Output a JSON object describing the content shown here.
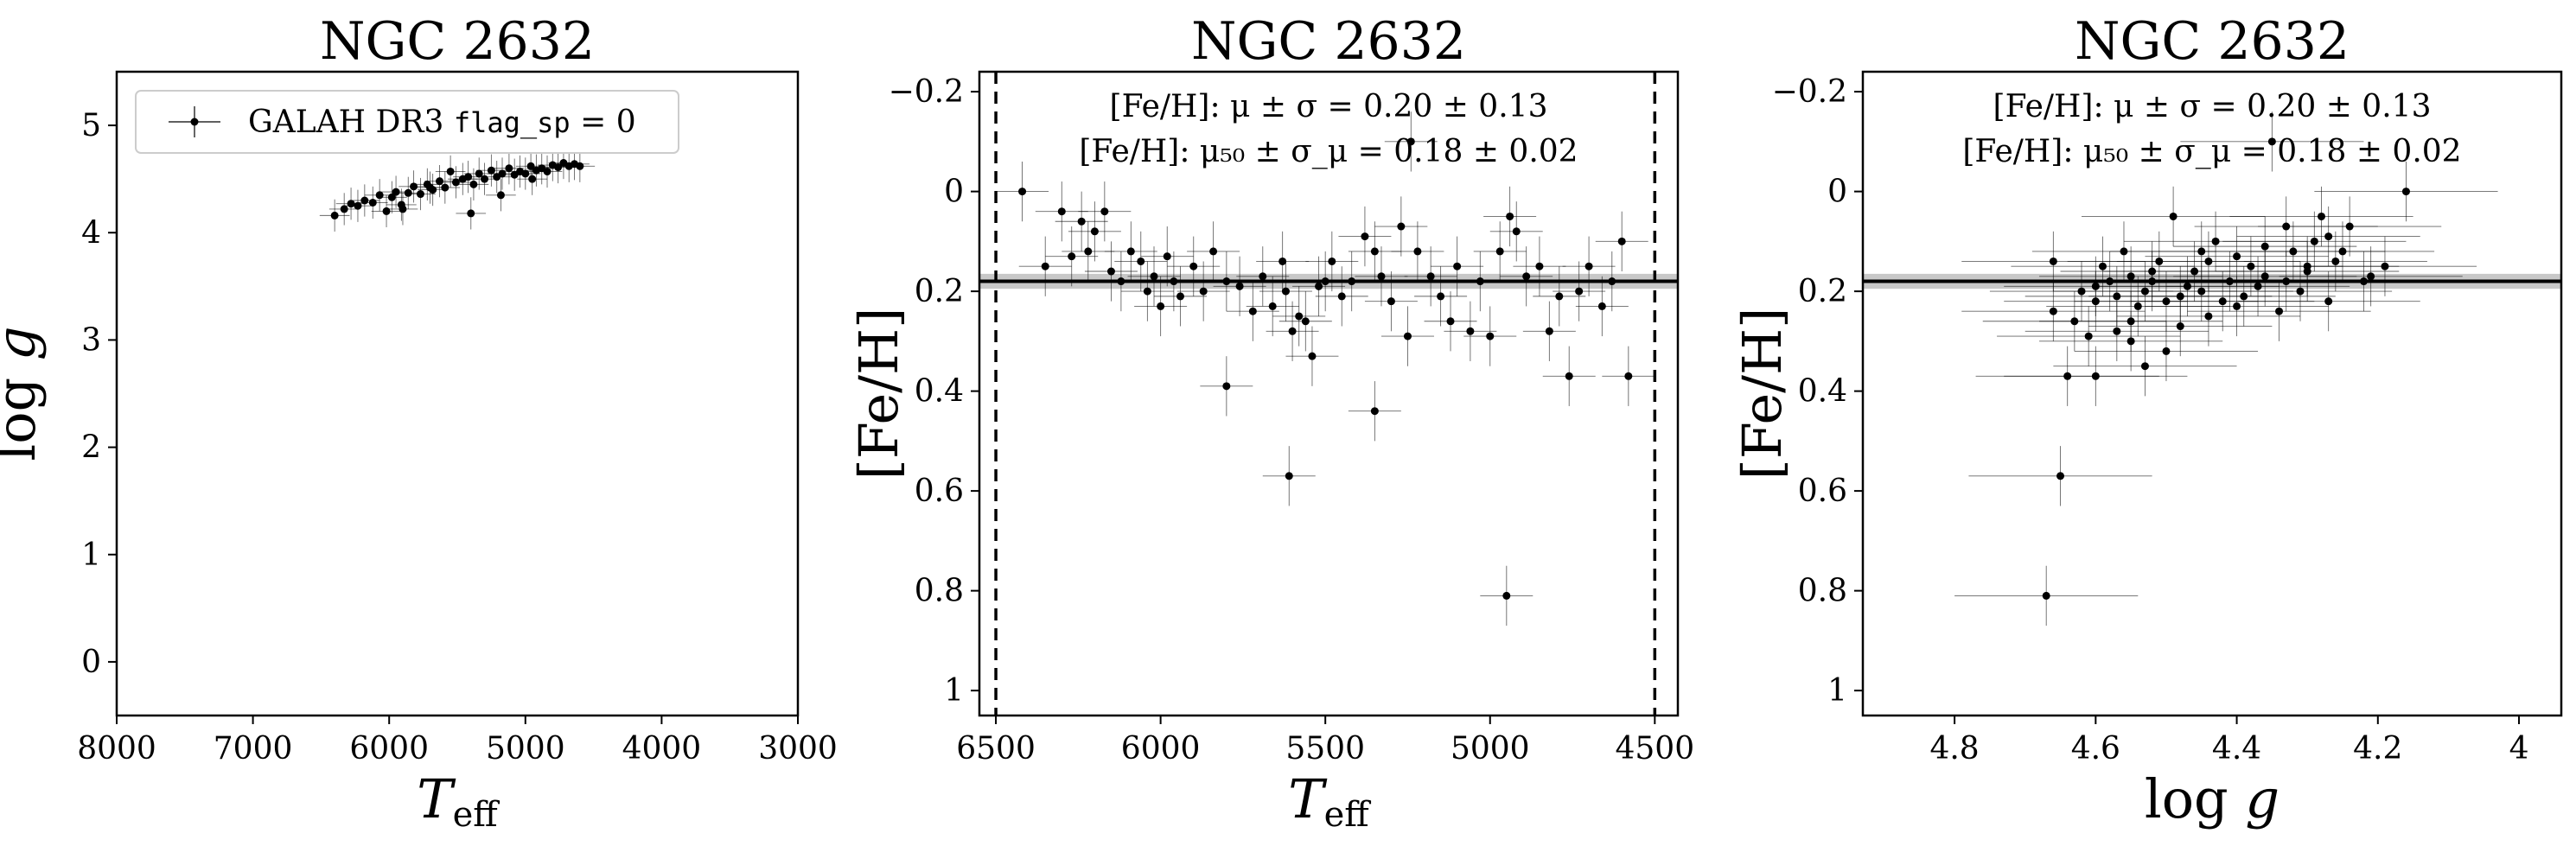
{
  "chart_data": [
    {
      "type": "scatter",
      "title": "NGC 2632",
      "xlabel": "T_eff",
      "xlabel_main": "T",
      "xlabel_sub": "eff",
      "ylabel": "log g",
      "ylabel_main": "log",
      "ylabel_var": "g",
      "xlim": [
        8000,
        3000
      ],
      "ylim": [
        5.5,
        -0.5
      ],
      "xticks": [
        8000,
        7000,
        6000,
        5000,
        4000,
        3000
      ],
      "yticks": [
        0,
        1,
        2,
        3,
        4,
        5
      ],
      "legend": {
        "label_prefix": "GALAH DR3",
        "label_code": "flag_sp",
        "label_suffix": "= 0",
        "placement": "upper-left"
      },
      "series": [
        {
          "name": "GALAH DR3 flag_sp = 0",
          "x": [
            6400,
            6330,
            6280,
            6230,
            6180,
            6120,
            6070,
            6020,
            5980,
            5950,
            5910,
            5860,
            5820,
            5770,
            5720,
            5680,
            5630,
            5590,
            5550,
            5510,
            5460,
            5420,
            5380,
            5340,
            5300,
            5250,
            5210,
            5170,
            5120,
            5080,
            5040,
            5000,
            4960,
            4920,
            4880,
            4840,
            4800,
            4760,
            4720,
            4680,
            4640,
            4600,
            5400,
            5900,
            5700,
            5180,
            4950
          ],
          "y": [
            4.16,
            4.22,
            4.27,
            4.25,
            4.3,
            4.28,
            4.35,
            4.2,
            4.33,
            4.38,
            4.26,
            4.37,
            4.43,
            4.36,
            4.45,
            4.4,
            4.48,
            4.42,
            4.57,
            4.47,
            4.5,
            4.52,
            4.45,
            4.55,
            4.5,
            4.58,
            4.52,
            4.55,
            4.6,
            4.54,
            4.57,
            4.55,
            4.62,
            4.58,
            4.6,
            4.57,
            4.63,
            4.61,
            4.65,
            4.62,
            4.64,
            4.62,
            4.18,
            4.22,
            4.42,
            4.35,
            4.5
          ],
          "xerr": 110,
          "yerr": 0.15
        }
      ]
    },
    {
      "type": "scatter",
      "title": "NGC 2632",
      "xlabel": "T_eff",
      "xlabel_main": "T",
      "xlabel_sub": "eff",
      "ylabel": "[Fe/H]",
      "xlim": [
        6550,
        4430
      ],
      "ylim": [
        -0.24,
        1.05
      ],
      "xticks": [
        6500,
        6000,
        5500,
        5000,
        4500
      ],
      "yticks": [
        -0.2,
        0.0,
        0.2,
        0.4,
        0.6,
        0.8,
        1.0
      ],
      "vlines": [
        6500,
        4500
      ],
      "hline": 0.18,
      "hband": [
        0.165,
        0.195
      ],
      "annotations": [
        "[Fe/H]: μ ± σ = 0.20 ± 0.13",
        "[Fe/H]: μ₅₀ ± σ_μ = 0.18 ± 0.02"
      ],
      "series": [
        {
          "name": "",
          "x": [
            6420,
            6350,
            6300,
            6270,
            6240,
            6220,
            6200,
            6170,
            6150,
            6120,
            6090,
            6060,
            6040,
            6020,
            6000,
            5980,
            5960,
            5940,
            5900,
            5870,
            5840,
            5800,
            5760,
            5720,
            5690,
            5660,
            5630,
            5620,
            5600,
            5580,
            5560,
            5540,
            5520,
            5500,
            5480,
            5450,
            5420,
            5380,
            5350,
            5330,
            5300,
            5270,
            5250,
            5220,
            5180,
            5150,
            5120,
            5100,
            5060,
            5030,
            5000,
            4970,
            4940,
            4920,
            4890,
            4850,
            4820,
            4790,
            4760,
            4730,
            4700,
            4660,
            4630,
            4600,
            4580,
            5800,
            5610,
            5240,
            4950,
            5350
          ],
          "y": [
            0.0,
            0.15,
            0.04,
            0.13,
            0.06,
            0.12,
            0.08,
            0.04,
            0.16,
            0.18,
            0.12,
            0.14,
            0.2,
            0.17,
            0.23,
            0.13,
            0.18,
            0.21,
            0.15,
            0.2,
            0.12,
            0.18,
            0.19,
            0.24,
            0.17,
            0.23,
            0.14,
            0.2,
            0.28,
            0.25,
            0.26,
            0.33,
            0.19,
            0.18,
            0.14,
            0.21,
            0.18,
            0.09,
            0.12,
            0.17,
            0.22,
            0.07,
            0.29,
            0.12,
            0.17,
            0.21,
            0.26,
            0.15,
            0.28,
            0.18,
            0.29,
            0.12,
            0.05,
            0.08,
            0.17,
            0.15,
            0.28,
            0.21,
            0.37,
            0.2,
            0.15,
            0.23,
            0.18,
            0.1,
            0.37,
            0.39,
            0.57,
            -0.1,
            0.81,
            0.44
          ],
          "xerr": 80,
          "yerr": 0.06
        }
      ]
    },
    {
      "type": "scatter",
      "title": "NGC 2632",
      "xlabel": "log g",
      "xlabel_main": "log",
      "xlabel_var": "g",
      "ylabel": "[Fe/H]",
      "xlim": [
        4.93,
        3.94
      ],
      "ylim": [
        -0.24,
        1.05
      ],
      "xticks": [
        4.8,
        4.6,
        4.4,
        4.2,
        4.0
      ],
      "yticks": [
        -0.2,
        0.0,
        0.2,
        0.4,
        0.6,
        0.8,
        1.0
      ],
      "hline": 0.18,
      "hband": [
        0.165,
        0.195
      ],
      "annotations": [
        "[Fe/H]: μ ± σ = 0.20 ± 0.13",
        "[Fe/H]: μ₅₀ ± σ_μ = 0.18 ± 0.02"
      ],
      "series": [
        {
          "name": "",
          "x": [
            4.67,
            4.66,
            4.65,
            4.64,
            4.63,
            4.62,
            4.61,
            4.6,
            4.6,
            4.59,
            4.58,
            4.57,
            4.57,
            4.56,
            4.55,
            4.55,
            4.54,
            4.53,
            4.53,
            4.52,
            4.51,
            4.5,
            4.5,
            4.49,
            4.48,
            4.47,
            4.46,
            4.45,
            4.45,
            4.44,
            4.43,
            4.42,
            4.41,
            4.4,
            4.39,
            4.38,
            4.37,
            4.36,
            4.35,
            4.34,
            4.33,
            4.32,
            4.31,
            4.3,
            4.29,
            4.28,
            4.27,
            4.26,
            4.25,
            4.24,
            4.22,
            4.21,
            4.19,
            4.16,
            4.66,
            4.6,
            4.55,
            4.52,
            4.48,
            4.44,
            4.4,
            4.36,
            4.33,
            4.3,
            4.27
          ],
          "y": [
            0.81,
            0.14,
            0.57,
            0.37,
            0.26,
            0.2,
            0.29,
            0.22,
            0.37,
            0.15,
            0.18,
            0.28,
            0.21,
            0.12,
            0.3,
            0.17,
            0.23,
            0.2,
            0.35,
            0.18,
            0.14,
            0.32,
            0.22,
            0.05,
            0.27,
            0.19,
            0.16,
            0.2,
            0.12,
            0.25,
            0.1,
            0.22,
            0.18,
            0.13,
            0.21,
            0.15,
            0.19,
            0.17,
            -0.1,
            0.24,
            0.07,
            0.12,
            0.2,
            0.15,
            0.1,
            0.05,
            0.09,
            0.14,
            0.12,
            0.07,
            0.18,
            0.17,
            0.15,
            0.0,
            0.24,
            0.19,
            0.26,
            0.16,
            0.21,
            0.14,
            0.23,
            0.11,
            0.18,
            0.16,
            0.22
          ],
          "xerr": 0.13,
          "yerr": 0.06
        }
      ]
    }
  ]
}
